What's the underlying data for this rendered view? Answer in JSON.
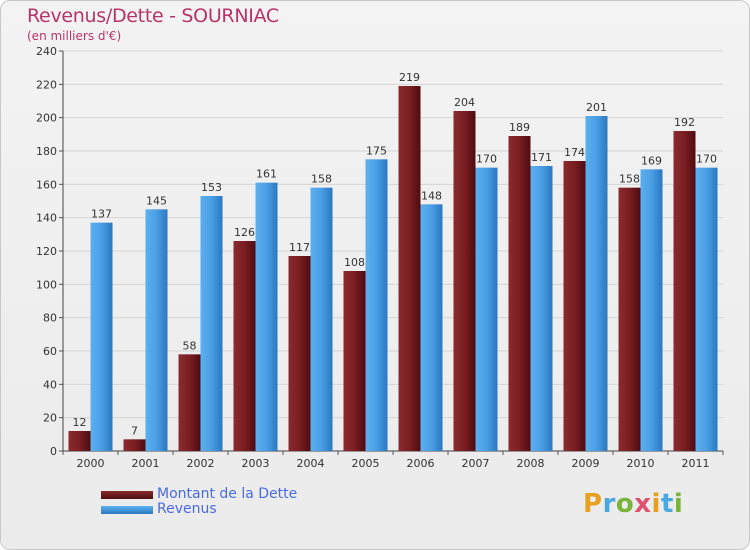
{
  "title": "Revenus/Dette - SOURNIAC",
  "subtitle": "(en milliers d'€)",
  "logo": {
    "text": "Proxiti"
  },
  "colors": {
    "dette": "#6e1518",
    "revenus": "#3a8ad0",
    "title": "#b8336a"
  },
  "chart_data": {
    "type": "bar",
    "title": "Revenus/Dette - SOURNIAC",
    "ylabel": "(en milliers d'€)",
    "xlabel": "",
    "ylim": [
      0,
      240
    ],
    "yticks": [
      0,
      20,
      40,
      60,
      80,
      100,
      120,
      140,
      160,
      180,
      200,
      220,
      240
    ],
    "grid": true,
    "legend_position": "bottom-left",
    "categories": [
      "2000",
      "2001",
      "2002",
      "2003",
      "2004",
      "2005",
      "2006",
      "2007",
      "2008",
      "2009",
      "2010",
      "2011"
    ],
    "series": [
      {
        "name": "Montant de la Dette",
        "color": "#6e1518",
        "values": [
          12,
          7,
          58,
          126,
          117,
          108,
          219,
          204,
          189,
          174,
          158,
          192
        ]
      },
      {
        "name": "Revenus",
        "color": "#3a8ad0",
        "values": [
          137,
          145,
          153,
          161,
          158,
          175,
          148,
          170,
          171,
          201,
          169,
          170
        ]
      }
    ]
  }
}
